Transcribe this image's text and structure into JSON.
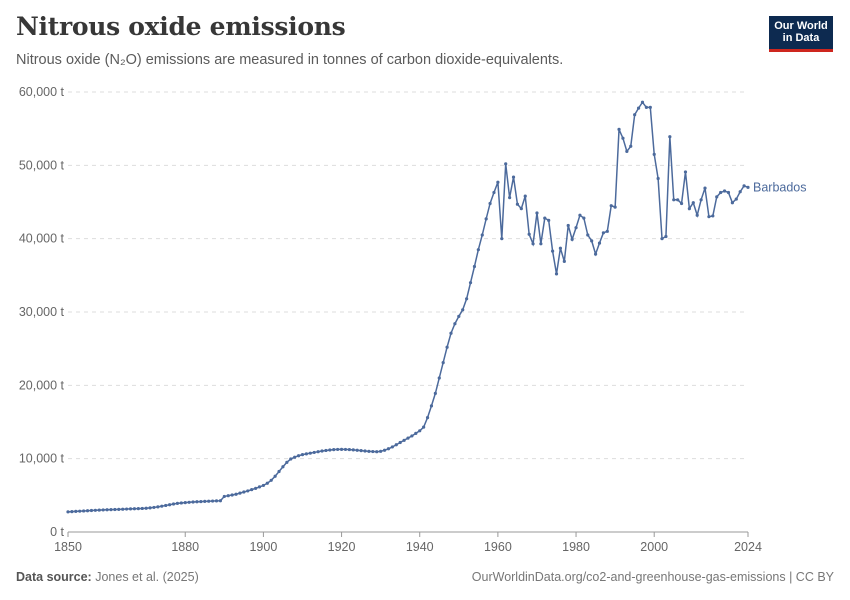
{
  "header": {
    "title": "Nitrous oxide emissions",
    "subtitle": "Nitrous oxide (N₂O) emissions are measured in tonnes of carbon dioxide-equivalents."
  },
  "logo": {
    "line1": "Our World",
    "line2": "in Data"
  },
  "footer": {
    "source_label": "Data source:",
    "source_value": "Jones et al. (2025)",
    "url_license": "OurWorldinData.org/co2-and-greenhouse-gas-emissions | CC BY"
  },
  "colors": {
    "series": "#4c6a9c",
    "grid": "#dddddd",
    "axis": "#999999"
  },
  "chart_data": {
    "type": "line",
    "title": "Nitrous oxide emissions",
    "xlabel": "",
    "ylabel": "",
    "xlim": [
      1850,
      2024
    ],
    "ylim": [
      0,
      60000
    ],
    "x_ticks": [
      1850,
      1880,
      1900,
      1920,
      1940,
      1960,
      1980,
      2000,
      2024
    ],
    "x_tick_labels": [
      "1850",
      "1880",
      "1900",
      "1920",
      "1940",
      "1960",
      "1980",
      "2000",
      "2024"
    ],
    "y_ticks": [
      0,
      10000,
      20000,
      30000,
      40000,
      50000,
      60000
    ],
    "y_tick_labels": [
      "0 t",
      "10,000 t",
      "20,000 t",
      "30,000 t",
      "40,000 t",
      "50,000 t",
      "60,000 t"
    ],
    "grid": "horizontal dashed",
    "legend": "inline label at line end",
    "series": [
      {
        "name": "Barbados",
        "points": [
          [
            1850,
            2750
          ],
          [
            1851,
            2780
          ],
          [
            1852,
            2810
          ],
          [
            1853,
            2840
          ],
          [
            1854,
            2870
          ],
          [
            1855,
            2900
          ],
          [
            1856,
            2930
          ],
          [
            1857,
            2960
          ],
          [
            1858,
            2990
          ],
          [
            1859,
            3010
          ],
          [
            1860,
            3030
          ],
          [
            1861,
            3050
          ],
          [
            1862,
            3070
          ],
          [
            1863,
            3090
          ],
          [
            1864,
            3110
          ],
          [
            1865,
            3130
          ],
          [
            1866,
            3150
          ],
          [
            1867,
            3170
          ],
          [
            1868,
            3190
          ],
          [
            1869,
            3210
          ],
          [
            1870,
            3240
          ],
          [
            1871,
            3290
          ],
          [
            1872,
            3350
          ],
          [
            1873,
            3430
          ],
          [
            1874,
            3520
          ],
          [
            1875,
            3620
          ],
          [
            1876,
            3720
          ],
          [
            1877,
            3820
          ],
          [
            1878,
            3900
          ],
          [
            1879,
            3960
          ],
          [
            1880,
            4010
          ],
          [
            1881,
            4050
          ],
          [
            1882,
            4090
          ],
          [
            1883,
            4120
          ],
          [
            1884,
            4150
          ],
          [
            1885,
            4180
          ],
          [
            1886,
            4200
          ],
          [
            1887,
            4220
          ],
          [
            1888,
            4240
          ],
          [
            1889,
            4260
          ],
          [
            1890,
            4850
          ],
          [
            1891,
            4950
          ],
          [
            1892,
            5050
          ],
          [
            1893,
            5150
          ],
          [
            1894,
            5300
          ],
          [
            1895,
            5450
          ],
          [
            1896,
            5600
          ],
          [
            1897,
            5780
          ],
          [
            1898,
            5950
          ],
          [
            1899,
            6150
          ],
          [
            1900,
            6350
          ],
          [
            1901,
            6650
          ],
          [
            1902,
            7050
          ],
          [
            1903,
            7600
          ],
          [
            1904,
            8250
          ],
          [
            1905,
            8900
          ],
          [
            1906,
            9500
          ],
          [
            1907,
            9950
          ],
          [
            1908,
            10200
          ],
          [
            1909,
            10400
          ],
          [
            1910,
            10550
          ],
          [
            1911,
            10650
          ],
          [
            1912,
            10750
          ],
          [
            1913,
            10850
          ],
          [
            1914,
            10950
          ],
          [
            1915,
            11050
          ],
          [
            1916,
            11120
          ],
          [
            1917,
            11180
          ],
          [
            1918,
            11230
          ],
          [
            1919,
            11260
          ],
          [
            1920,
            11270
          ],
          [
            1921,
            11260
          ],
          [
            1922,
            11240
          ],
          [
            1923,
            11200
          ],
          [
            1924,
            11150
          ],
          [
            1925,
            11100
          ],
          [
            1926,
            11050
          ],
          [
            1927,
            11000
          ],
          [
            1928,
            10970
          ],
          [
            1929,
            10950
          ],
          [
            1930,
            11000
          ],
          [
            1931,
            11150
          ],
          [
            1932,
            11350
          ],
          [
            1933,
            11600
          ],
          [
            1934,
            11900
          ],
          [
            1935,
            12200
          ],
          [
            1936,
            12500
          ],
          [
            1937,
            12800
          ],
          [
            1938,
            13100
          ],
          [
            1939,
            13450
          ],
          [
            1940,
            13800
          ],
          [
            1941,
            14300
          ],
          [
            1942,
            15600
          ],
          [
            1943,
            17200
          ],
          [
            1944,
            18900
          ],
          [
            1945,
            21000
          ],
          [
            1946,
            23100
          ],
          [
            1947,
            25200
          ],
          [
            1948,
            27100
          ],
          [
            1949,
            28400
          ],
          [
            1950,
            29400
          ],
          [
            1951,
            30300
          ],
          [
            1952,
            31800
          ],
          [
            1953,
            34000
          ],
          [
            1954,
            36200
          ],
          [
            1955,
            38500
          ],
          [
            1956,
            40500
          ],
          [
            1957,
            42700
          ],
          [
            1958,
            44800
          ],
          [
            1959,
            46300
          ],
          [
            1960,
            47700
          ],
          [
            1961,
            40000
          ],
          [
            1962,
            50200
          ],
          [
            1963,
            45600
          ],
          [
            1964,
            48400
          ],
          [
            1965,
            44700
          ],
          [
            1966,
            44100
          ],
          [
            1967,
            45800
          ],
          [
            1968,
            40600
          ],
          [
            1969,
            39300
          ],
          [
            1970,
            43500
          ],
          [
            1971,
            39300
          ],
          [
            1972,
            42800
          ],
          [
            1973,
            42500
          ],
          [
            1974,
            38300
          ],
          [
            1975,
            35200
          ],
          [
            1976,
            38700
          ],
          [
            1977,
            36900
          ],
          [
            1978,
            41800
          ],
          [
            1979,
            39900
          ],
          [
            1980,
            41500
          ],
          [
            1981,
            43200
          ],
          [
            1982,
            42800
          ],
          [
            1983,
            40500
          ],
          [
            1984,
            39700
          ],
          [
            1985,
            37900
          ],
          [
            1986,
            39400
          ],
          [
            1987,
            40800
          ],
          [
            1988,
            41000
          ],
          [
            1989,
            44500
          ],
          [
            1990,
            44300
          ],
          [
            1991,
            54900
          ],
          [
            1992,
            53700
          ],
          [
            1993,
            51900
          ],
          [
            1994,
            52600
          ],
          [
            1995,
            56900
          ],
          [
            1996,
            57800
          ],
          [
            1997,
            58600
          ],
          [
            1998,
            57900
          ],
          [
            1999,
            57900
          ],
          [
            2000,
            51500
          ],
          [
            2001,
            48200
          ],
          [
            2002,
            40000
          ],
          [
            2003,
            40300
          ],
          [
            2004,
            53900
          ],
          [
            2005,
            45300
          ],
          [
            2006,
            45300
          ],
          [
            2007,
            44800
          ],
          [
            2008,
            49100
          ],
          [
            2009,
            44100
          ],
          [
            2010,
            44900
          ],
          [
            2011,
            43200
          ],
          [
            2012,
            45300
          ],
          [
            2013,
            46900
          ],
          [
            2014,
            43000
          ],
          [
            2015,
            43100
          ],
          [
            2016,
            45700
          ],
          [
            2017,
            46300
          ],
          [
            2018,
            46500
          ],
          [
            2019,
            46300
          ],
          [
            2020,
            44900
          ],
          [
            2021,
            45400
          ],
          [
            2022,
            46400
          ],
          [
            2023,
            47200
          ],
          [
            2024,
            47000
          ]
        ]
      }
    ]
  }
}
